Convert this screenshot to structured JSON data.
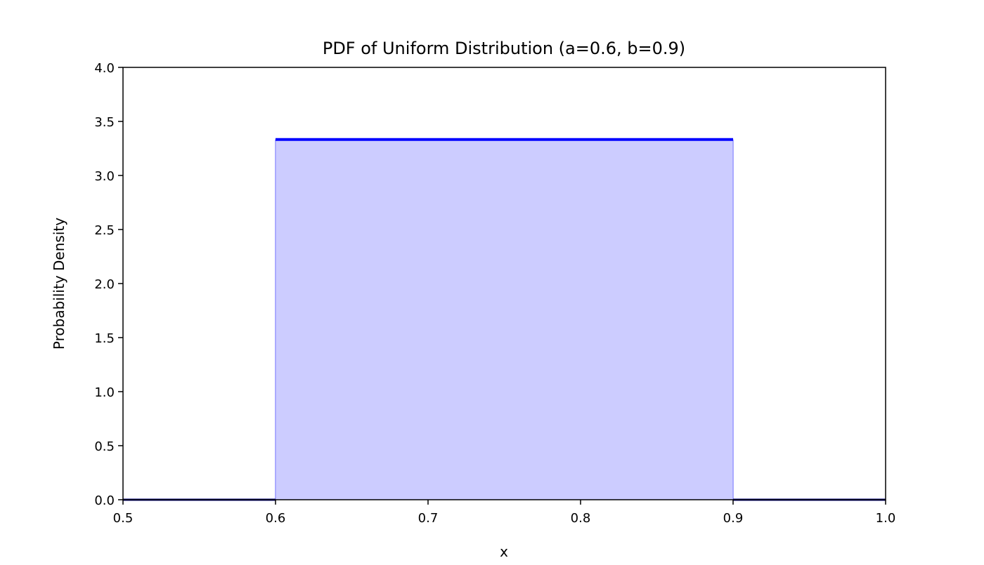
{
  "chart_data": {
    "type": "area",
    "title": "PDF of Uniform Distribution (a=0.6, b=0.9)",
    "xlabel": "x",
    "ylabel": "Probability Density",
    "xlim": [
      0.5,
      1.0
    ],
    "ylim": [
      0.0,
      4.0
    ],
    "x_ticks": [
      "0.5",
      "0.6",
      "0.7",
      "0.8",
      "0.9",
      "1.0"
    ],
    "y_ticks": [
      "0.0",
      "0.5",
      "1.0",
      "1.5",
      "2.0",
      "2.5",
      "3.0",
      "3.5",
      "4.0"
    ],
    "grid": false,
    "series": [
      {
        "color": "#0000ff",
        "fill_color": "#ccccff",
        "segments": [
          {
            "x": [
              0.5,
              0.6
            ],
            "y": [
              0.0,
              0.0
            ]
          },
          {
            "x": [
              0.6,
              0.9
            ],
            "y": [
              3.333,
              3.333
            ]
          },
          {
            "x": [
              0.9,
              1.0
            ],
            "y": [
              0.0,
              0.0
            ]
          }
        ],
        "fill_region": {
          "x": [
            0.6,
            0.9
          ],
          "y": 3.333
        }
      }
    ]
  }
}
